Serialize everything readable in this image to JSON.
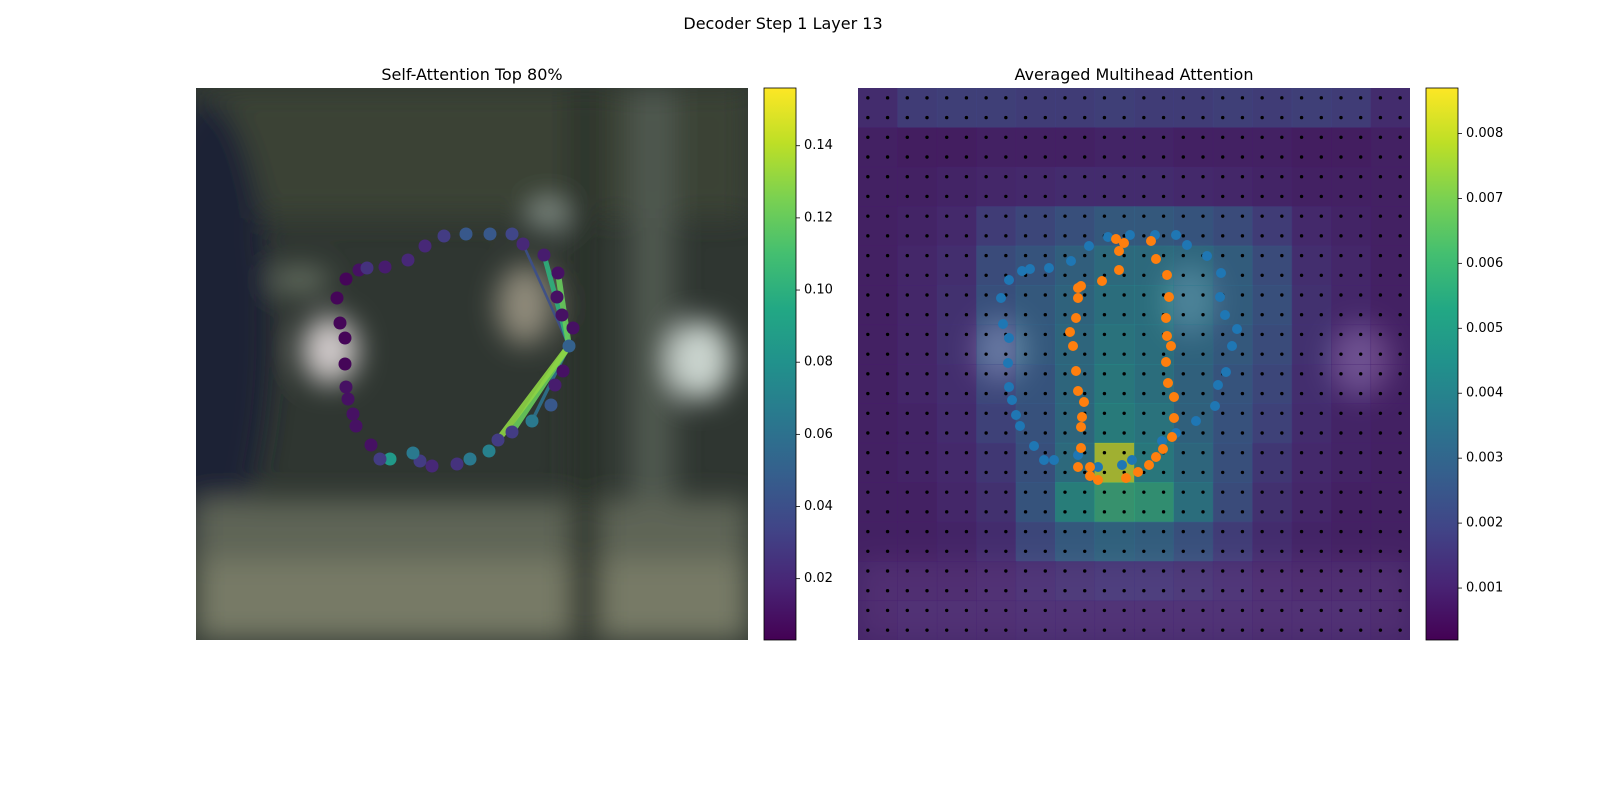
{
  "title": "Decoder Step 1 Layer 13",
  "chart_data": [
    {
      "type": "scatter",
      "title": "Self-Attention Top 80%",
      "colormap": "viridis",
      "xlim": [
        0,
        552
      ],
      "ylim": [
        552,
        0
      ],
      "clim": [
        0.003,
        0.156
      ],
      "cticks": [
        0.02,
        0.04,
        0.06,
        0.08,
        {
          "value": 0.1,
          "label": "0.10"
        },
        0.12,
        0.14
      ],
      "points": {
        "x": [
          141,
          150,
          163,
          171,
          189,
          212,
          229,
          248,
          270,
          294,
          316,
          327,
          348,
          362,
          361,
          366,
          377,
          373,
          367,
          359,
          355,
          336,
          316,
          302,
          293,
          274,
          261,
          236,
          224,
          217,
          194,
          184,
          175,
          160,
          157,
          152,
          150,
          149,
          149,
          144
        ],
        "y": [
          210,
          191,
          182,
          180,
          179,
          172,
          158,
          148,
          146,
          146,
          146,
          156,
          167,
          185,
          209,
          227,
          240,
          258,
          283,
          297,
          317,
          333,
          344,
          352,
          363,
          371,
          376,
          378,
          373,
          365,
          371,
          371,
          357,
          338,
          326,
          311,
          299,
          276,
          250,
          235
        ],
        "values": [
          0.005,
          0.005,
          0.01,
          0.025,
          0.015,
          0.02,
          0.02,
          0.03,
          0.045,
          0.045,
          0.035,
          0.02,
          0.015,
          0.01,
          0.01,
          0.01,
          0.01,
          0.05,
          0.01,
          0.015,
          0.045,
          0.065,
          0.03,
          0.03,
          0.07,
          0.065,
          0.025,
          0.02,
          0.03,
          0.065,
          0.085,
          0.03,
          0.01,
          0.01,
          0.01,
          0.01,
          0.01,
          0.005,
          0.005,
          0.005
        ]
      },
      "links": {
        "source": [
          17,
          17,
          17,
          17,
          17,
          17
        ],
        "target": [
          11,
          12,
          13,
          21,
          22,
          23
        ],
        "values": [
          0.04,
          0.1,
          0.12,
          0.06,
          0.12,
          0.13
        ]
      }
    },
    {
      "type": "heatmap",
      "title": "Averaged Multihead Attention",
      "colormap": "viridis",
      "xlim": [
        0,
        552
      ],
      "ylim": [
        552,
        0
      ],
      "clim": [
        0.0002,
        0.0087
      ],
      "cticks": [
        0.001,
        0.002,
        0.003,
        0.004,
        0.005,
        0.006,
        0.007,
        0.008
      ],
      "heatmap": [
        [
          0.0012,
          0.0018,
          0.0019,
          0.0019,
          0.0018,
          0.0018,
          0.0019,
          0.0018,
          0.0018,
          0.0019,
          0.0018,
          0.0019,
          0.0018,
          0.0012
        ],
        [
          0.0008,
          0.0007,
          0.0007,
          0.0008,
          0.0008,
          0.0008,
          0.0009,
          0.0009,
          0.0008,
          0.0008,
          0.0008,
          0.0007,
          0.0007,
          0.0008
        ],
        [
          0.0008,
          0.0008,
          0.0009,
          0.001,
          0.0011,
          0.0012,
          0.0012,
          0.0012,
          0.0011,
          0.001,
          0.0009,
          0.0008,
          0.0008,
          0.0008
        ],
        [
          0.0008,
          0.0009,
          0.0011,
          0.0018,
          0.0022,
          0.0026,
          0.003,
          0.003,
          0.0028,
          0.0024,
          0.0018,
          0.0011,
          0.0009,
          0.0008
        ],
        [
          0.0008,
          0.001,
          0.0013,
          0.0024,
          0.0028,
          0.0033,
          0.0038,
          0.0038,
          0.0036,
          0.0032,
          0.0024,
          0.0013,
          0.001,
          0.0008
        ],
        [
          0.0008,
          0.001,
          0.0014,
          0.0026,
          0.003,
          0.0035,
          0.004,
          0.004,
          0.0036,
          0.0032,
          0.0026,
          0.0014,
          0.001,
          0.0008
        ],
        [
          0.0008,
          0.001,
          0.0014,
          0.0024,
          0.003,
          0.0036,
          0.0042,
          0.004,
          0.0035,
          0.003,
          0.0024,
          0.0014,
          0.001,
          0.0008
        ],
        [
          0.0008,
          0.001,
          0.0013,
          0.0022,
          0.0028,
          0.0036,
          0.0044,
          0.004,
          0.0034,
          0.0028,
          0.0022,
          0.0013,
          0.001,
          0.0008
        ],
        [
          0.0008,
          0.0009,
          0.0012,
          0.002,
          0.0027,
          0.0036,
          0.0046,
          0.0042,
          0.0034,
          0.0027,
          0.002,
          0.0012,
          0.0009,
          0.0008
        ],
        [
          0.0008,
          0.0009,
          0.0011,
          0.0016,
          0.0026,
          0.0038,
          0.008,
          0.0044,
          0.0036,
          0.0026,
          0.0016,
          0.0011,
          0.0009,
          0.0008
        ],
        [
          0.0008,
          0.0008,
          0.001,
          0.0014,
          0.0028,
          0.0048,
          0.0058,
          0.0056,
          0.004,
          0.0024,
          0.0014,
          0.001,
          0.0008,
          0.0008
        ],
        [
          0.0008,
          0.0008,
          0.0009,
          0.0012,
          0.0022,
          0.003,
          0.0034,
          0.0032,
          0.0026,
          0.0018,
          0.0012,
          0.0009,
          0.0008,
          0.0008
        ],
        [
          0.0009,
          0.0009,
          0.0009,
          0.001,
          0.0012,
          0.0014,
          0.0015,
          0.0015,
          0.0014,
          0.0012,
          0.001,
          0.0009,
          0.0009,
          0.0009
        ],
        [
          0.0009,
          0.001,
          0.001,
          0.001,
          0.0011,
          0.0011,
          0.0011,
          0.0011,
          0.0011,
          0.0011,
          0.001,
          0.001,
          0.001,
          0.0009
        ]
      ],
      "series": [
        {
          "color": "#1f77b4",
          "x": [
            143,
            151,
            164,
            172,
            191,
            213,
            231,
            250,
            272,
            297,
            318,
            329,
            349,
            363,
            362,
            367,
            379,
            374,
            368,
            360,
            357,
            338,
            318,
            304,
            274,
            264,
            240,
            220,
            196,
            186,
            176,
            162,
            158,
            154,
            151,
            150,
            151,
            145
          ],
          "y": [
            210,
            192,
            183,
            181,
            180,
            173,
            158,
            149,
            147,
            147,
            147,
            157,
            168,
            185,
            209,
            227,
            241,
            258,
            284,
            297,
            318,
            333,
            345,
            353,
            372,
            377,
            379,
            367,
            372,
            372,
            358,
            338,
            327,
            312,
            299,
            275,
            250,
            236
          ]
        },
        {
          "color": "#ff7f0e",
          "x": [
            258,
            266,
            293,
            298,
            261,
            261,
            244,
            223,
            220,
            220,
            218,
            212,
            215,
            218,
            220,
            226,
            224,
            223,
            223,
            220,
            232,
            240,
            232,
            268,
            280,
            291,
            298,
            305,
            314,
            316,
            316,
            310,
            308,
            313,
            309,
            308,
            311,
            309
          ],
          "y": [
            151,
            155,
            153,
            171,
            163,
            182,
            193,
            198,
            200,
            210,
            230,
            244,
            258,
            283,
            303,
            314,
            329,
            339,
            360,
            379,
            379,
            392,
            388,
            390,
            384,
            377,
            369,
            361,
            349,
            330,
            309,
            295,
            274,
            258,
            248,
            230,
            209,
            187
          ]
        }
      ]
    }
  ]
}
